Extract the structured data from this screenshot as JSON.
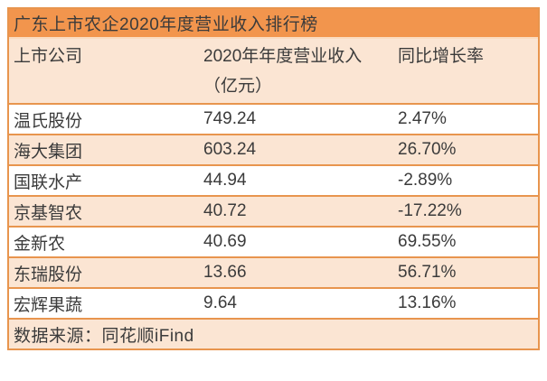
{
  "colors": {
    "title_bar_bg": "#f2954d",
    "band_bg": "#fbe5d3",
    "border": "#e8954e",
    "title_header_divider": "#fbdcc0",
    "text": "#3b3b3b",
    "page_bg": "#ffffff"
  },
  "table": {
    "title": "广东上市农企2020年度营业收入排行榜",
    "columns": {
      "company": "上市公司",
      "revenue": "2020年年度营业收入（亿元）",
      "growth": "同比增长率"
    },
    "rows": [
      {
        "company": "温氏股份",
        "revenue": "749.24",
        "growth": "2.47%"
      },
      {
        "company": "海大集团",
        "revenue": "603.24",
        "growth": "26.70%"
      },
      {
        "company": "国联水产",
        "revenue": "44.94",
        "growth": "-2.89%"
      },
      {
        "company": "京基智农",
        "revenue": "40.72",
        "growth": "-17.22%"
      },
      {
        "company": "金新农",
        "revenue": "40.69",
        "growth": "69.55%"
      },
      {
        "company": "东瑞股份",
        "revenue": "13.66",
        "growth": "56.71%"
      },
      {
        "company": "宏辉果蔬",
        "revenue": "9.64",
        "growth": "13.16%"
      }
    ],
    "source": "数据来源：同花顺iFind"
  },
  "chart_data": {
    "type": "table",
    "title": "广东上市农企2020年度营业收入排行榜",
    "columns": [
      "上市公司",
      "2020年年度营业收入（亿元）",
      "同比增长率"
    ],
    "rows": [
      [
        "温氏股份",
        749.24,
        "2.47%"
      ],
      [
        "海大集团",
        603.24,
        "26.70%"
      ],
      [
        "国联水产",
        44.94,
        "-2.89%"
      ],
      [
        "京基智农",
        40.72,
        "-17.22%"
      ],
      [
        "金新农",
        40.69,
        "69.55%"
      ],
      [
        "东瑞股份",
        13.66,
        "56.71%"
      ],
      [
        "宏辉果蔬",
        9.64,
        "13.16%"
      ]
    ],
    "source": "数据来源：同花顺iFind",
    "layout_hints": {
      "banded_rows": true,
      "band_color": "#fbe5d3",
      "accent_color": "#f2954d",
      "revenue_unit": "亿元"
    }
  }
}
